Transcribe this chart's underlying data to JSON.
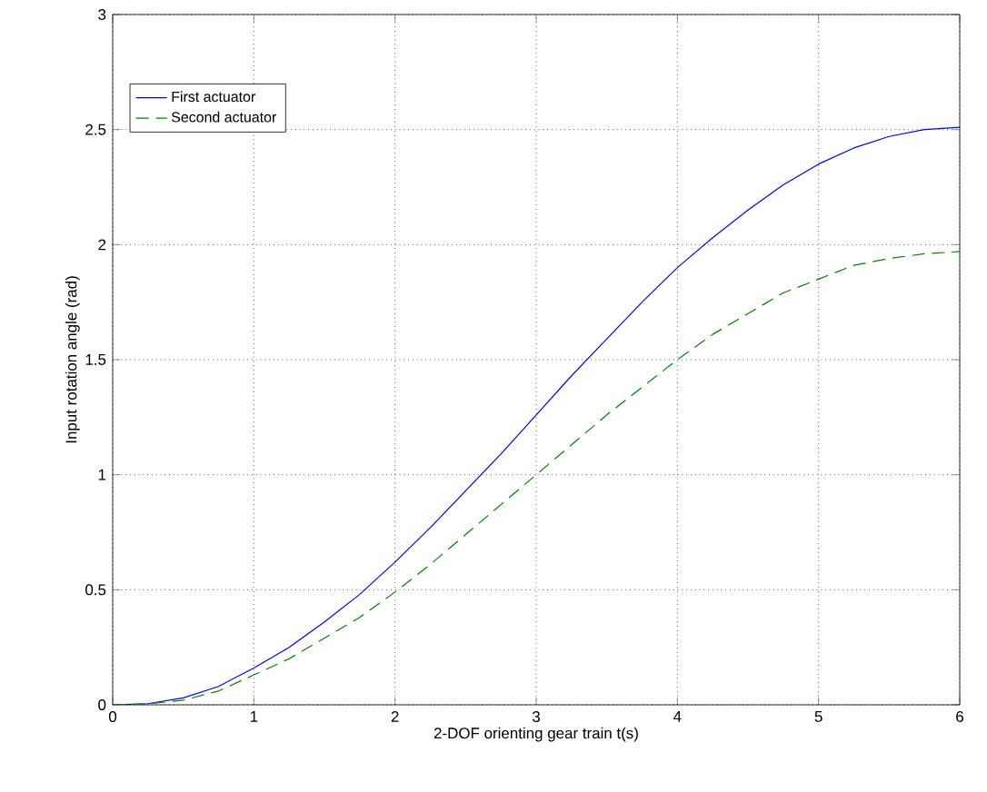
{
  "chart_data": {
    "type": "line",
    "xlabel": "2-DOF orienting gear train           t(s)",
    "ylabel": "Input rotation angle (rad)",
    "x": [
      0,
      0.25,
      0.5,
      0.75,
      1,
      1.25,
      1.5,
      1.75,
      2,
      2.25,
      2.5,
      2.75,
      3,
      3.25,
      3.5,
      3.75,
      4,
      4.25,
      4.5,
      4.75,
      5,
      5.25,
      5.5,
      5.75,
      6
    ],
    "series": [
      {
        "name": "First actuator",
        "color": "#0000ff",
        "line_style": "solid",
        "values": [
          0,
          0.005,
          0.03,
          0.08,
          0.16,
          0.25,
          0.36,
          0.48,
          0.62,
          0.77,
          0.93,
          1.09,
          1.26,
          1.43,
          1.59,
          1.75,
          1.9,
          2.03,
          2.15,
          2.26,
          2.35,
          2.42,
          2.47,
          2.5,
          2.51
        ]
      },
      {
        "name": "Second actuator",
        "color": "#008000",
        "line_style": "dashed",
        "values": [
          0,
          0.004,
          0.02,
          0.06,
          0.13,
          0.2,
          0.29,
          0.38,
          0.49,
          0.61,
          0.74,
          0.87,
          1.0,
          1.13,
          1.26,
          1.38,
          1.5,
          1.61,
          1.7,
          1.79,
          1.85,
          1.91,
          1.94,
          1.96,
          1.97
        ]
      }
    ],
    "xlim": [
      0,
      6
    ],
    "ylim": [
      0,
      3
    ],
    "xticks": [
      0,
      1,
      2,
      3,
      4,
      5,
      6
    ],
    "yticks": [
      0,
      0.5,
      1,
      1.5,
      2,
      2.5,
      3
    ],
    "grid": true,
    "legend": "top left",
    "marker": "none"
  }
}
